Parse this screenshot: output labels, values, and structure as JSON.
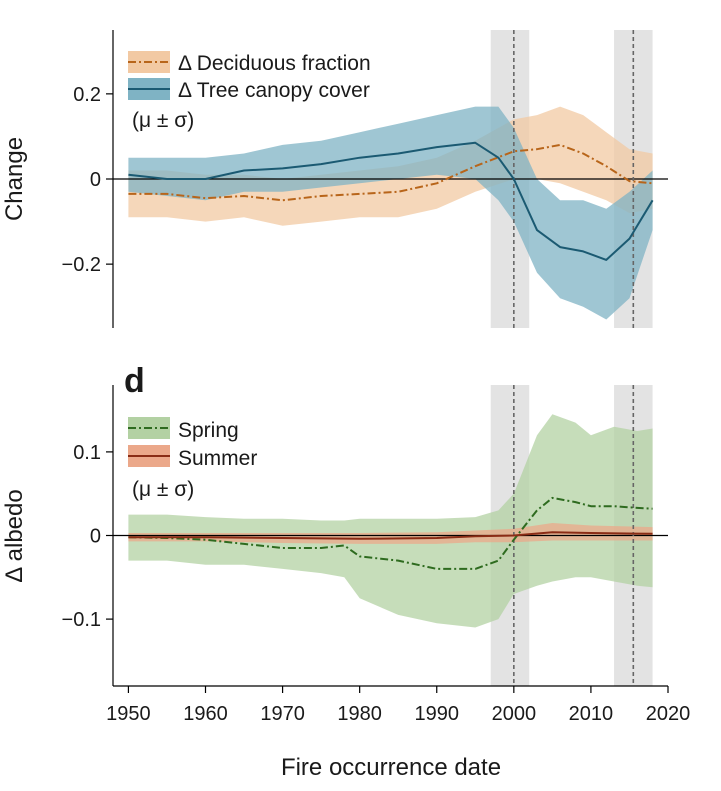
{
  "chart_data": [
    {
      "type": "area",
      "panel_letter": "",
      "ylabel": "Change",
      "xlabel": "",
      "xlim": [
        1948,
        2020
      ],
      "ylim": [
        -0.35,
        0.35
      ],
      "yticks": [
        0.2,
        0,
        -0.2
      ],
      "ytick_labels": [
        "0.2",
        "0",
        "−0.2"
      ],
      "legend_title_suffix": "(μ ± σ)",
      "legend_position": "top-left",
      "shaded_periods": [
        [
          1997,
          2002
        ],
        [
          2013,
          2018
        ]
      ],
      "dashed_lines": [
        2000,
        2015.5
      ],
      "series": [
        {
          "name": "Δ Deciduous fraction",
          "color": "#b8651a",
          "band_color": "#f2c9a3",
          "line_style": "dashdot",
          "x": [
            1950,
            1955,
            1960,
            1965,
            1970,
            1975,
            1980,
            1985,
            1990,
            1995,
            2000,
            2003,
            2006,
            2009,
            2012,
            2015,
            2018
          ],
          "mean": [
            -0.035,
            -0.035,
            -0.045,
            -0.04,
            -0.05,
            -0.04,
            -0.035,
            -0.03,
            -0.01,
            0.03,
            0.065,
            0.07,
            0.08,
            0.06,
            0.03,
            -0.005,
            -0.01
          ],
          "upper": [
            0.02,
            0.02,
            0.01,
            0.01,
            0.0,
            0.01,
            0.02,
            0.03,
            0.05,
            0.09,
            0.14,
            0.15,
            0.17,
            0.15,
            0.11,
            0.07,
            0.06
          ],
          "lower": [
            -0.09,
            -0.09,
            -0.1,
            -0.09,
            -0.11,
            -0.1,
            -0.09,
            -0.09,
            -0.07,
            -0.03,
            0.0,
            0.0,
            -0.01,
            -0.03,
            -0.05,
            -0.08,
            -0.07
          ]
        },
        {
          "name": "Δ Tree canopy cover",
          "color": "#1b5a72",
          "band_color": "#7fb3c4",
          "line_style": "solid",
          "x": [
            1950,
            1955,
            1960,
            1965,
            1970,
            1975,
            1980,
            1985,
            1990,
            1995,
            1998,
            2000,
            2003,
            2006,
            2009,
            2012,
            2015,
            2018
          ],
          "mean": [
            0.01,
            0.0,
            0.0,
            0.02,
            0.025,
            0.035,
            0.05,
            0.06,
            0.075,
            0.085,
            0.05,
            0.0,
            -0.12,
            -0.16,
            -0.17,
            -0.19,
            -0.14,
            -0.05
          ],
          "upper": [
            0.05,
            0.05,
            0.05,
            0.06,
            0.08,
            0.09,
            0.11,
            0.13,
            0.15,
            0.17,
            0.17,
            0.12,
            0.0,
            -0.05,
            -0.05,
            -0.07,
            -0.03,
            0.02
          ],
          "lower": [
            -0.03,
            -0.04,
            -0.05,
            -0.03,
            -0.03,
            -0.02,
            -0.01,
            0.0,
            0.01,
            0.0,
            -0.05,
            -0.1,
            -0.22,
            -0.28,
            -0.3,
            -0.33,
            -0.28,
            -0.12
          ]
        }
      ]
    },
    {
      "type": "area",
      "panel_letter": "d",
      "ylabel": "Δ albedo",
      "xlabel": "Fire occurrence date",
      "xlim": [
        1948,
        2020
      ],
      "ylim": [
        -0.18,
        0.18
      ],
      "yticks": [
        0.1,
        0,
        -0.1
      ],
      "ytick_labels": [
        "0.1",
        "0",
        "−0.1"
      ],
      "xticks": [
        1950,
        1960,
        1970,
        1980,
        1990,
        2000,
        2010,
        2020
      ],
      "legend_title_suffix": "(μ ± σ)",
      "legend_position": "top-left",
      "shaded_periods": [
        [
          1997,
          2002
        ],
        [
          2013,
          2018
        ]
      ],
      "dashed_lines": [
        2000,
        2015.5
      ],
      "series": [
        {
          "name": "Spring",
          "color": "#2e6b1f",
          "band_color": "#b3d1a3",
          "line_style": "dashdot",
          "x": [
            1950,
            1955,
            1960,
            1965,
            1970,
            1975,
            1978,
            1980,
            1985,
            1990,
            1995,
            1998,
            2000,
            2003,
            2005,
            2008,
            2010,
            2013,
            2016,
            2018
          ],
          "mean": [
            -0.002,
            -0.003,
            -0.005,
            -0.01,
            -0.015,
            -0.015,
            -0.012,
            -0.025,
            -0.03,
            -0.04,
            -0.04,
            -0.03,
            -0.005,
            0.03,
            0.045,
            0.04,
            0.035,
            0.035,
            0.033,
            0.032
          ],
          "upper": [
            0.025,
            0.025,
            0.022,
            0.02,
            0.02,
            0.018,
            0.018,
            0.02,
            0.02,
            0.02,
            0.022,
            0.03,
            0.05,
            0.12,
            0.145,
            0.135,
            0.12,
            0.13,
            0.125,
            0.128
          ],
          "lower": [
            -0.03,
            -0.03,
            -0.035,
            -0.035,
            -0.04,
            -0.045,
            -0.05,
            -0.075,
            -0.095,
            -0.105,
            -0.11,
            -0.1,
            -0.07,
            -0.06,
            -0.055,
            -0.05,
            -0.05,
            -0.055,
            -0.06,
            -0.062
          ]
        },
        {
          "name": "Summer",
          "color": "#8a2c15",
          "band_color": "#eba88a",
          "line_style": "solid",
          "x": [
            1950,
            1960,
            1970,
            1980,
            1990,
            1995,
            2000,
            2005,
            2010,
            2018
          ],
          "mean": [
            -0.002,
            -0.002,
            -0.003,
            -0.004,
            -0.003,
            -0.001,
            0.0,
            0.004,
            0.003,
            0.002
          ],
          "upper": [
            0.003,
            0.003,
            0.003,
            0.003,
            0.004,
            0.006,
            0.008,
            0.015,
            0.012,
            0.01
          ],
          "lower": [
            -0.007,
            -0.007,
            -0.009,
            -0.01,
            -0.01,
            -0.008,
            -0.008,
            -0.006,
            -0.006,
            -0.006
          ]
        }
      ]
    }
  ]
}
